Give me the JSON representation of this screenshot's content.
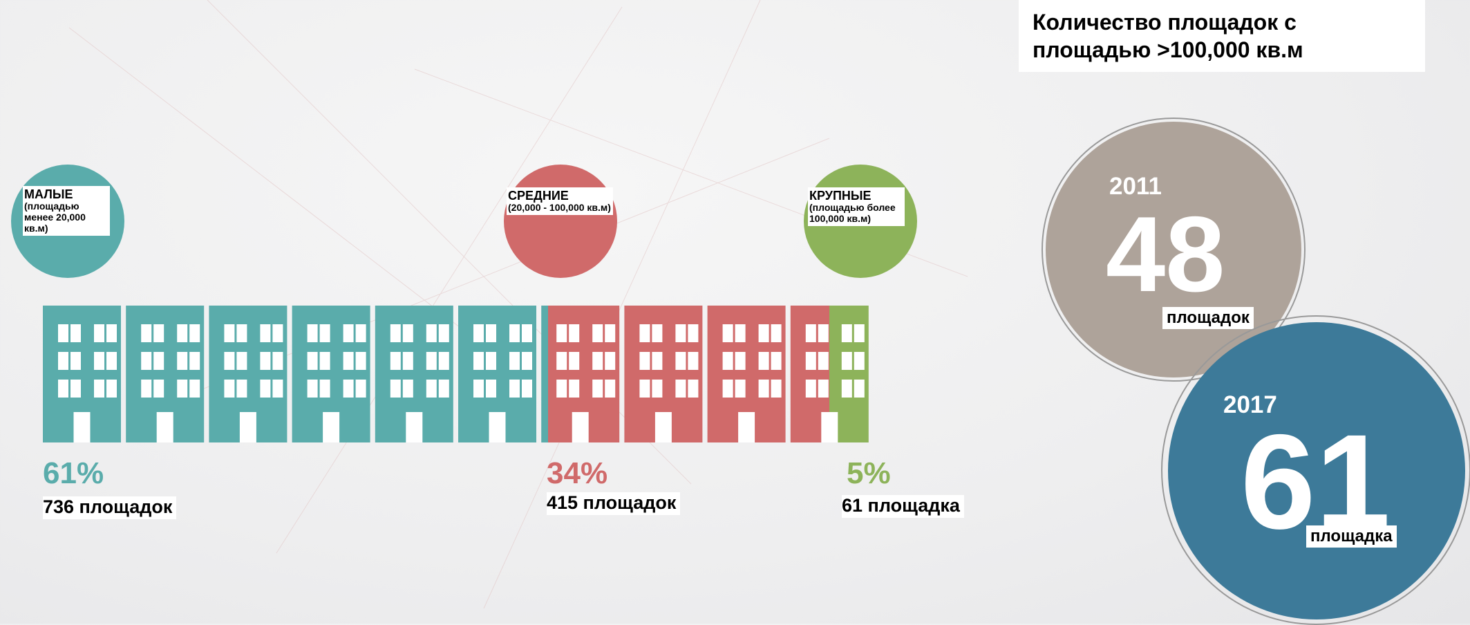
{
  "segments": [
    {
      "name": "МАЛЫЕ",
      "description": "(площадью менее 20,000 кв.м)",
      "share": "61%",
      "count": "736 площадок",
      "color": "#5aacab"
    },
    {
      "name": "СРЕДНИЕ",
      "description": "(20,000 - 100,000 кв.м)",
      "share": "34%",
      "count": "415 площадок",
      "color": "#d06a6a"
    },
    {
      "name": "КРУПНЫЕ",
      "description": "(площадью более 100,000 кв.м)",
      "share": "5%",
      "count": "61 площадка",
      "color": "#8db35a"
    }
  ],
  "panel": {
    "title": "Количество площадок с площадью >100,000 кв.м",
    "circles": [
      {
        "year": "2011",
        "value": "48",
        "unit": "площадок",
        "color": "#aea39a"
      },
      {
        "year": "2017",
        "value": "61",
        "unit": "площадка",
        "color": "#3d7a99"
      }
    ]
  }
}
